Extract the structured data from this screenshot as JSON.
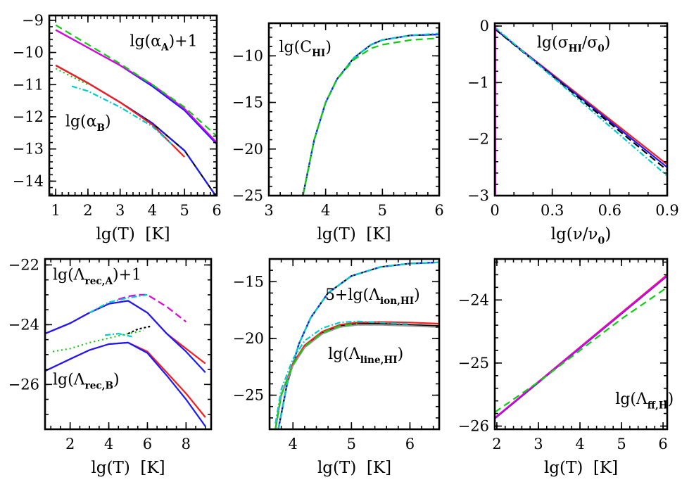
{
  "chart_data": [
    {
      "type": "line",
      "panel": "alpha",
      "xlabel": "lg(T)  [K]",
      "ylabel": "",
      "xlim": [
        0.8,
        6
      ],
      "ylim": [
        -14.45,
        -8.85
      ],
      "xticks": [
        1,
        2,
        3,
        4,
        5,
        6
      ],
      "xtick_labels": [
        "1",
        "2",
        "3",
        "4",
        "5",
        "6"
      ],
      "yticks": [
        -9,
        -10,
        -11,
        -12,
        -13,
        -14
      ],
      "ytick_labels": [
        "−9",
        "−10",
        "−11",
        "−12",
        "−13",
        "−14"
      ],
      "annotations": [
        {
          "label": "lg(α",
          "sub": "A",
          "tail": ")+1",
          "at": [
            3.3,
            -9.8
          ]
        },
        {
          "label": "lg(α",
          "sub": "B",
          "tail": ")",
          "at": [
            1.3,
            -12.3
          ]
        }
      ],
      "series": [
        {
          "name": "alpha_A blue",
          "color": "#1a1aff",
          "dash": "",
          "x": [
            1,
            2,
            3,
            4,
            5,
            6
          ],
          "y": [
            -9.3,
            -9.85,
            -10.4,
            -11.05,
            -11.8,
            -12.85
          ]
        },
        {
          "name": "alpha_A magenta",
          "color": "#e000e0",
          "dash": "",
          "x": [
            1,
            2,
            3,
            4,
            5,
            6
          ],
          "y": [
            -9.3,
            -9.85,
            -10.4,
            -11.0,
            -11.75,
            -12.8
          ]
        },
        {
          "name": "alpha_A green",
          "color": "#10cc10",
          "dash": "10,6",
          "x": [
            1,
            2,
            3,
            4,
            5,
            6
          ],
          "y": [
            -9.15,
            -9.75,
            -10.35,
            -11.0,
            -11.7,
            -12.6
          ]
        },
        {
          "name": "alpha_B black",
          "color": "#000000",
          "dash": "",
          "x": [
            1,
            2,
            3,
            4,
            5,
            6
          ],
          "y": [
            -10.4,
            -10.95,
            -11.55,
            -12.2,
            -13.05,
            -14.5
          ]
        },
        {
          "name": "alpha_B blue",
          "color": "#1a1aff",
          "dash": "14,5",
          "x": [
            1,
            2,
            3,
            4,
            5,
            6
          ],
          "y": [
            -10.4,
            -10.95,
            -11.55,
            -12.2,
            -13.05,
            -14.5
          ]
        },
        {
          "name": "alpha_B red",
          "color": "#ff1a1a",
          "dash": "",
          "x": [
            1,
            2,
            3,
            4,
            5
          ],
          "y": [
            -10.4,
            -10.95,
            -11.55,
            -12.25,
            -13.25
          ]
        },
        {
          "name": "alpha_B cyan",
          "color": "#00cccc",
          "dash": "8,3,2,3",
          "x": [
            1.5,
            2,
            3,
            4,
            4.6
          ],
          "y": [
            -11.05,
            -11.2,
            -11.7,
            -12.3,
            -12.85
          ]
        },
        {
          "name": "alpha_B green dotted",
          "color": "#10cc10",
          "dash": "2,4",
          "x": [
            1,
            1.5,
            2
          ],
          "y": [
            -10.5,
            -10.75,
            -11.0
          ]
        }
      ]
    },
    {
      "type": "line",
      "panel": "C_HI",
      "xlabel": "lg(T)  [K]",
      "ylabel": "",
      "xlim": [
        3,
        6
      ],
      "ylim": [
        -25,
        -6.5
      ],
      "xticks": [
        3,
        4,
        5,
        6
      ],
      "xtick_labels": [
        "3",
        "4",
        "5",
        "6"
      ],
      "yticks": [
        -10,
        -15,
        -20,
        -25
      ],
      "ytick_labels": [
        "−10",
        "−15",
        "−20",
        "−25"
      ],
      "annotations": [
        {
          "label": "lg(C",
          "sub": "HI",
          "tail": ")",
          "at": [
            3.18,
            -9.6
          ]
        }
      ],
      "series": [
        {
          "name": "C_HI black",
          "color": "#000000",
          "dash": "",
          "x": [
            3.6,
            3.8,
            4,
            4.2,
            4.5,
            4.8,
            5,
            5.5,
            6
          ],
          "y": [
            -25,
            -19,
            -15,
            -12.5,
            -10.2,
            -8.8,
            -8.3,
            -7.8,
            -7.7
          ]
        },
        {
          "name": "C_HI blue",
          "color": "#1a1aff",
          "dash": "10,5",
          "x": [
            3.6,
            3.8,
            4,
            4.2,
            4.5,
            4.8,
            5,
            5.5,
            6
          ],
          "y": [
            -25,
            -19,
            -15,
            -12.5,
            -10.2,
            -8.8,
            -8.3,
            -7.8,
            -7.7
          ]
        },
        {
          "name": "C_HI cyan",
          "color": "#00cccc",
          "dash": "8,3,2,3",
          "x": [
            3.6,
            3.8,
            4,
            4.2,
            4.5,
            4.8,
            5,
            5.5,
            6
          ],
          "y": [
            -25,
            -19,
            -15,
            -12.5,
            -10.2,
            -8.8,
            -8.3,
            -7.8,
            -7.6
          ]
        },
        {
          "name": "C_HI green",
          "color": "#10cc10",
          "dash": "10,6",
          "x": [
            3.6,
            3.8,
            4,
            4.2,
            4.5,
            4.8,
            5,
            5.5,
            6
          ],
          "y": [
            -25,
            -19,
            -15,
            -12.5,
            -10.4,
            -9.2,
            -8.8,
            -8.3,
            -8.1
          ]
        }
      ]
    },
    {
      "type": "line",
      "panel": "sigma_HI",
      "xlabel": "lg(ν/ν",
      "xlabel_sub": "0",
      "xlabel_tail": ")",
      "ylabel": "",
      "xlim": [
        0,
        0.9
      ],
      "ylim": [
        -3,
        0.05
      ],
      "xticks": [
        0,
        0.3,
        0.6,
        0.9
      ],
      "xtick_labels": [
        "0",
        "0.3",
        "0.6",
        "0.9"
      ],
      "yticks": [
        0,
        -1,
        -2,
        -3
      ],
      "ytick_labels": [
        "0",
        "−1",
        "−2",
        "−3"
      ],
      "annotations": [
        {
          "label": "lg(σ",
          "sub": "HI",
          "mid": "/σ",
          "sub2": "0",
          "tail": ")",
          "at": [
            0.22,
            -0.38
          ]
        }
      ],
      "series": [
        {
          "name": "sigma red",
          "color": "#ff1a1a",
          "dash": "",
          "x": [
            0,
            0.9
          ],
          "y": [
            -0.05,
            -2.45
          ]
        },
        {
          "name": "sigma blue",
          "color": "#1a1aff",
          "dash": "",
          "x": [
            0,
            0.9
          ],
          "y": [
            -0.05,
            -2.5
          ]
        },
        {
          "name": "sigma black",
          "color": "#000000",
          "dash": "10,5",
          "x": [
            0,
            0.9
          ],
          "y": [
            -0.05,
            -2.55
          ]
        },
        {
          "name": "sigma cyan",
          "color": "#00cccc",
          "dash": "8,3,2,3",
          "x": [
            0,
            0.9
          ],
          "y": [
            -0.02,
            -2.65
          ]
        },
        {
          "name": "sigma magenta edge",
          "color": "#e000e0",
          "dash": "",
          "x": [
            0.003,
            0.003
          ],
          "y": [
            -3,
            0
          ]
        }
      ]
    },
    {
      "type": "line",
      "panel": "Lambda_rec",
      "xlabel": "lg(T)  [K]",
      "ylabel": "",
      "xlim": [
        0.7,
        9.3
      ],
      "ylim": [
        -27.5,
        -21.8
      ],
      "xticks": [
        2,
        4,
        6,
        8
      ],
      "xtick_labels": [
        "2",
        "4",
        "6",
        "8"
      ],
      "yticks": [
        -22,
        -24,
        -26
      ],
      "ytick_labels": [
        "−22",
        "−24",
        "−26"
      ],
      "annotations": [
        {
          "label": "lg(Λ",
          "sub": "rec,A",
          "tail": ")+1",
          "at": [
            1.1,
            -22.5
          ]
        },
        {
          "label": "lg(Λ",
          "sub": "rec,B",
          "tail": ")",
          "at": [
            1.1,
            -26.0
          ]
        }
      ],
      "series": [
        {
          "name": "rec_A red",
          "color": "#ff1a1a",
          "dash": "",
          "x": [
            0.7,
            2,
            3,
            4,
            5,
            6,
            7,
            8,
            9
          ],
          "y": [
            -24.3,
            -23.95,
            -23.6,
            -23.3,
            -23.2,
            -23.6,
            -24.3,
            -24.8,
            -25.3
          ]
        },
        {
          "name": "rec_A blue",
          "color": "#1a1aff",
          "dash": "",
          "x": [
            0.7,
            2,
            3,
            4,
            5,
            6,
            7,
            8,
            9
          ],
          "y": [
            -24.3,
            -23.95,
            -23.6,
            -23.3,
            -23.2,
            -23.6,
            -24.3,
            -24.9,
            -25.6
          ]
        },
        {
          "name": "rec_A magenta",
          "color": "#e000e0",
          "dash": "10,5",
          "x": [
            4.5,
            5,
            5.5,
            6,
            7,
            8
          ],
          "y": [
            -23.15,
            -23.05,
            -23.0,
            -23.0,
            -23.4,
            -23.9
          ]
        },
        {
          "name": "rec_A cyan",
          "color": "#00cccc",
          "dash": "8,3,2,3",
          "x": [
            3,
            4,
            5,
            6
          ],
          "y": [
            -23.6,
            -23.25,
            -23.1,
            -23.0
          ]
        },
        {
          "name": "rec_A green dotted",
          "color": "#10cc10",
          "dash": "2,4",
          "x": [
            1.1,
            2,
            3,
            4,
            5,
            5.8
          ],
          "y": [
            -24.9,
            -24.8,
            -24.6,
            -24.45,
            -24.3,
            -24.2
          ]
        },
        {
          "name": "rec_A black dotted",
          "color": "#000000",
          "dash": "3,3",
          "x": [
            5,
            5.5,
            6.2
          ],
          "y": [
            -24.3,
            -24.15,
            -24.05
          ]
        },
        {
          "name": "rec_B red",
          "color": "#ff1a1a",
          "dash": "",
          "x": [
            0.7,
            2,
            3,
            4,
            5,
            6,
            7,
            8,
            9
          ],
          "y": [
            -25.55,
            -25.15,
            -24.85,
            -24.65,
            -24.6,
            -24.9,
            -25.6,
            -26.3,
            -27.1
          ]
        },
        {
          "name": "rec_B blue",
          "color": "#1a1aff",
          "dash": "",
          "x": [
            0.7,
            2,
            3,
            4,
            5,
            6,
            7,
            8,
            9
          ],
          "y": [
            -25.55,
            -25.15,
            -24.85,
            -24.65,
            -24.6,
            -24.95,
            -25.7,
            -26.5,
            -27.4
          ]
        },
        {
          "name": "rec_B cyan",
          "color": "#00cccc",
          "dash": "8,3,2,3",
          "x": [
            3.8,
            4.5,
            5.2
          ],
          "y": [
            -24.35,
            -24.3,
            -24.4
          ]
        }
      ]
    },
    {
      "type": "line",
      "panel": "Lambda_ion_line",
      "xlabel": "lg(T)  [K]",
      "ylabel": "",
      "xlim": [
        3.6,
        6.5
      ],
      "ylim": [
        -28,
        -13
      ],
      "xticks": [
        4,
        5,
        6
      ],
      "xtick_labels": [
        "4",
        "5",
        "6"
      ],
      "yticks": [
        -15,
        -20,
        -25
      ],
      "ytick_labels": [
        "−15",
        "−20",
        "−25"
      ],
      "annotations": [
        {
          "label": "5+lg(Λ",
          "sub": "ion,HI",
          "tail": ")",
          "at": [
            4.55,
            -16.6
          ]
        },
        {
          "label": "lg(Λ",
          "sub": "line,HI",
          "tail": ")",
          "at": [
            4.6,
            -21.8
          ]
        }
      ],
      "series": [
        {
          "name": "ion black",
          "color": "#000000",
          "dash": "",
          "x": [
            3.75,
            3.9,
            4.1,
            4.3,
            4.6,
            5,
            5.5,
            6,
            6.5
          ],
          "y": [
            -28,
            -24,
            -20.5,
            -18.2,
            -16,
            -14.5,
            -13.7,
            -13.4,
            -13.3
          ]
        },
        {
          "name": "ion blue",
          "color": "#1a1aff",
          "dash": "10,5",
          "x": [
            3.75,
            3.9,
            4.1,
            4.3,
            4.6,
            5,
            5.5,
            6,
            6.5
          ],
          "y": [
            -28,
            -24,
            -20.5,
            -18.2,
            -16,
            -14.5,
            -13.7,
            -13.4,
            -13.3
          ]
        },
        {
          "name": "ion cyan",
          "color": "#00cccc",
          "dash": "8,3,2,3",
          "x": [
            3.75,
            3.9,
            4.1,
            4.3,
            4.6,
            5,
            5.5,
            6,
            6.5
          ],
          "y": [
            -28,
            -24,
            -20.5,
            -18.2,
            -16,
            -14.5,
            -13.7,
            -13.4,
            -13.3
          ]
        },
        {
          "name": "line black",
          "color": "#000000",
          "dash": "",
          "x": [
            3.7,
            3.8,
            4,
            4.2,
            4.5,
            4.8,
            5.1,
            5.5,
            6,
            6.5
          ],
          "y": [
            -28,
            -25,
            -22.3,
            -20.7,
            -19.5,
            -18.9,
            -18.7,
            -18.7,
            -18.8,
            -18.9
          ]
        },
        {
          "name": "line red",
          "color": "#ff1a1a",
          "dash": "",
          "x": [
            3.7,
            3.8,
            4,
            4.2,
            4.5,
            4.8,
            5.1,
            5.5,
            6,
            6.5
          ],
          "y": [
            -28,
            -25,
            -22.2,
            -20.6,
            -19.4,
            -18.8,
            -18.6,
            -18.55,
            -18.6,
            -18.7
          ]
        },
        {
          "name": "line gray",
          "color": "#999999",
          "dash": "",
          "x": [
            3.7,
            3.8,
            4,
            4.2,
            4.5,
            4.8,
            5.1,
            5.5,
            6,
            6.5
          ],
          "y": [
            -28,
            -25,
            -22.4,
            -20.8,
            -19.6,
            -19.0,
            -18.8,
            -18.8,
            -18.9,
            -19.0
          ]
        },
        {
          "name": "line cyan",
          "color": "#00cccc",
          "dash": "8,3,2,3",
          "x": [
            3.7,
            3.8,
            4,
            4.2,
            4.5,
            4.8,
            5.1,
            5.5,
            6
          ],
          "y": [
            -27.5,
            -24.5,
            -21.8,
            -20.2,
            -19.1,
            -18.6,
            -18.5,
            -18.6,
            -18.75
          ]
        },
        {
          "name": "line green",
          "color": "#10cc10",
          "dash": "10,6",
          "x": [
            3.7,
            3.8,
            4,
            4.2,
            4.5,
            4.8,
            5.1
          ],
          "y": [
            -28,
            -25,
            -22.3,
            -20.7,
            -19.5,
            -18.9,
            -18.7
          ]
        }
      ]
    },
    {
      "type": "line",
      "panel": "Lambda_ff",
      "xlabel": "lg(T)  [K]",
      "ylabel": "",
      "xlim": [
        1.95,
        6.1
      ],
      "ylim": [
        -26.05,
        -23.35
      ],
      "xticks": [
        2,
        3,
        4,
        5,
        6
      ],
      "xtick_labels": [
        "2",
        "3",
        "4",
        "5",
        "6"
      ],
      "yticks": [
        -24,
        -25,
        -26
      ],
      "ytick_labels": [
        "−24",
        "−25",
        "−26"
      ],
      "annotations": [
        {
          "label": "lg(Λ",
          "sub": "ff,H",
          "tail": ")",
          "at": [
            4.85,
            -25.65
          ]
        }
      ],
      "series": [
        {
          "name": "ff red",
          "color": "#ff1a1a",
          "dash": "",
          "x": [
            1.95,
            6.1
          ],
          "y": [
            -25.87,
            -23.6
          ]
        },
        {
          "name": "ff blue",
          "color": "#1a1aff",
          "dash": "",
          "x": [
            1.95,
            6.1
          ],
          "y": [
            -25.88,
            -23.62
          ]
        },
        {
          "name": "ff magenta",
          "color": "#e000e0",
          "dash": "",
          "x": [
            1.95,
            6.1
          ],
          "y": [
            -25.87,
            -23.61
          ]
        },
        {
          "name": "ff green",
          "color": "#10cc10",
          "dash": "10,6",
          "x": [
            1.95,
            3,
            4,
            5,
            6.1
          ],
          "y": [
            -25.78,
            -25.3,
            -24.8,
            -24.3,
            -23.8
          ]
        }
      ]
    }
  ]
}
